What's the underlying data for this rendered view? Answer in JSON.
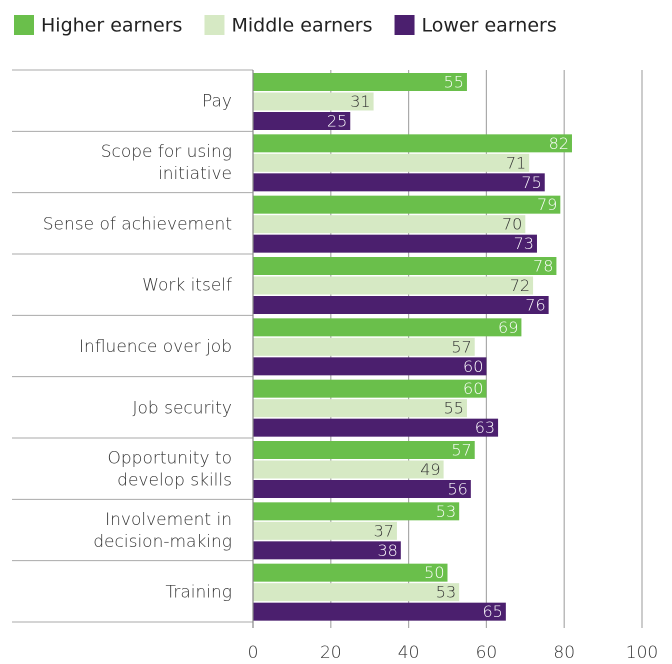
{
  "chart_data": {
    "type": "bar",
    "orientation": "horizontal",
    "categories": [
      "Pay",
      "Scope for using\ninitiative",
      "Sense of achievement",
      "Work itself",
      "Influence over job",
      "Job security",
      "Opportunity to\ndevelop skills",
      "Involvement in\ndecision-making",
      "Training"
    ],
    "series": [
      {
        "name": "Higher earners",
        "color": "#6abf4b",
        "values": [
          55,
          82,
          79,
          78,
          69,
          60,
          57,
          53,
          50
        ]
      },
      {
        "name": "Middle earners",
        "color": "#d6e9c4",
        "values": [
          31,
          71,
          70,
          72,
          57,
          55,
          49,
          37,
          53
        ]
      },
      {
        "name": "Lower earners",
        "color": "#4b1f6e",
        "values": [
          25,
          75,
          73,
          76,
          60,
          63,
          56,
          38,
          65
        ]
      }
    ],
    "xlim": [
      0,
      100
    ],
    "xticks": [
      0,
      20,
      40,
      60,
      80,
      100
    ],
    "grid": true,
    "legend": "top"
  }
}
